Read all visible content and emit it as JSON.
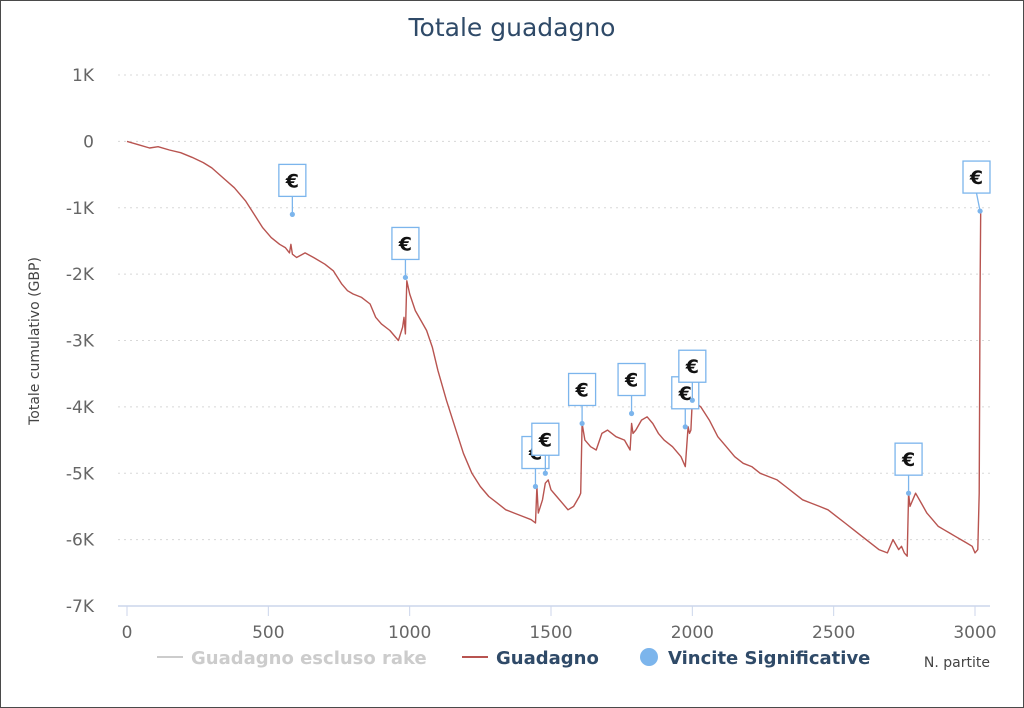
{
  "chart_data": {
    "type": "line",
    "title": "Totale guadagno",
    "xlabel": "N. partite",
    "ylabel": "Totale cumulativo (GBP)",
    "xlim": [
      0,
      3020
    ],
    "ylim": [
      -7000,
      1000
    ],
    "x_ticks": [
      0,
      500,
      1000,
      1500,
      2000,
      2500,
      3000
    ],
    "x_tick_labels": [
      "0",
      "500",
      "1000",
      "1500",
      "2000",
      "2500",
      "3000"
    ],
    "y_ticks": [
      1000,
      0,
      -1000,
      -2000,
      -3000,
      -4000,
      -5000,
      -6000,
      -7000
    ],
    "y_tick_labels": [
      "1K",
      "0",
      "-1K",
      "-2K",
      "-3K",
      "-4K",
      "-5K",
      "-6K",
      "-7K"
    ],
    "grid": "horizontal dotted",
    "legend_placement": "bottom",
    "colors": {
      "guadagno": "#b85450",
      "flags": "#7cb5ec",
      "inactive": "#cccccc",
      "title": "#2f4a68"
    },
    "series": [
      {
        "name": "Guadagno escluso rake",
        "visible": false,
        "x": [],
        "y": []
      },
      {
        "name": "Guadagno",
        "visible": true,
        "x": [
          0,
          40,
          80,
          110,
          150,
          190,
          230,
          270,
          300,
          340,
          380,
          420,
          450,
          480,
          510,
          540,
          560,
          575,
          580,
          585,
          600,
          630,
          660,
          700,
          730,
          760,
          780,
          800,
          830,
          860,
          880,
          900,
          930,
          960,
          975,
          980,
          985,
          990,
          1000,
          1020,
          1040,
          1060,
          1080,
          1100,
          1130,
          1160,
          1190,
          1220,
          1250,
          1280,
          1310,
          1340,
          1370,
          1400,
          1430,
          1445,
          1450,
          1455,
          1470,
          1480,
          1490,
          1500,
          1520,
          1540,
          1560,
          1580,
          1600,
          1605,
          1610,
          1620,
          1640,
          1660,
          1680,
          1700,
          1730,
          1760,
          1780,
          1785,
          1790,
          1800,
          1820,
          1840,
          1860,
          1880,
          1900,
          1930,
          1960,
          1975,
          1980,
          1985,
          1990,
          1995,
          2000,
          2030,
          2060,
          2090,
          2120,
          2150,
          2180,
          2210,
          2240,
          2270,
          2300,
          2330,
          2360,
          2390,
          2420,
          2450,
          2480,
          2510,
          2540,
          2570,
          2600,
          2630,
          2660,
          2690,
          2710,
          2730,
          2740,
          2750,
          2760,
          2765,
          2770,
          2790,
          2810,
          2830,
          2850,
          2870,
          2890,
          2910,
          2930,
          2950,
          2970,
          2990,
          3000,
          3010,
          3015,
          3018,
          3020
        ],
        "y": [
          0,
          -50,
          -100,
          -80,
          -130,
          -170,
          -240,
          -320,
          -400,
          -550,
          -700,
          -900,
          -1100,
          -1300,
          -1450,
          -1550,
          -1600,
          -1680,
          -1550,
          -1700,
          -1750,
          -1680,
          -1750,
          -1850,
          -1950,
          -2150,
          -2250,
          -2300,
          -2350,
          -2450,
          -2650,
          -2750,
          -2850,
          -3000,
          -2800,
          -2650,
          -2900,
          -2100,
          -2300,
          -2550,
          -2700,
          -2850,
          -3100,
          -3450,
          -3900,
          -4300,
          -4700,
          -5000,
          -5200,
          -5350,
          -5450,
          -5550,
          -5600,
          -5650,
          -5700,
          -5750,
          -5200,
          -5600,
          -5400,
          -5150,
          -5100,
          -5250,
          -5350,
          -5450,
          -5550,
          -5500,
          -5350,
          -5300,
          -4250,
          -4500,
          -4600,
          -4650,
          -4400,
          -4350,
          -4450,
          -4500,
          -4650,
          -4250,
          -4400,
          -4350,
          -4200,
          -4150,
          -4250,
          -4400,
          -4500,
          -4600,
          -4750,
          -4900,
          -4600,
          -4300,
          -4400,
          -4350,
          -3900,
          -4000,
          -4200,
          -4450,
          -4600,
          -4750,
          -4850,
          -4900,
          -5000,
          -5050,
          -5100,
          -5200,
          -5300,
          -5400,
          -5450,
          -5500,
          -5550,
          -5650,
          -5750,
          -5850,
          -5950,
          -6050,
          -6150,
          -6200,
          -6000,
          -6150,
          -6100,
          -6200,
          -6250,
          -5300,
          -5500,
          -5300,
          -5450,
          -5600,
          -5700,
          -5800,
          -5850,
          -5900,
          -5950,
          -6000,
          -6050,
          -6100,
          -6200,
          -6150,
          -5300,
          -2200,
          -1050
        ]
      }
    ],
    "markers": {
      "name": "Vincite Significative",
      "symbol": "€",
      "points": [
        {
          "x": 585,
          "y": -1100
        },
        {
          "x": 985,
          "y": -2050
        },
        {
          "x": 1445,
          "y": -5200
        },
        {
          "x": 1480,
          "y": -5000
        },
        {
          "x": 1610,
          "y": -4250
        },
        {
          "x": 1785,
          "y": -4100
        },
        {
          "x": 1975,
          "y": -4300
        },
        {
          "x": 2000,
          "y": -3900
        },
        {
          "x": 2765,
          "y": -5300
        },
        {
          "x": 3018,
          "y": -1050
        }
      ]
    }
  }
}
